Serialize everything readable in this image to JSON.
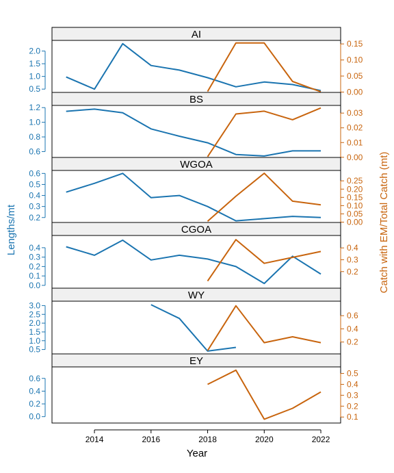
{
  "chart_data": {
    "type": "line",
    "xlabel": "Year",
    "ylabel_left": "Lengths/mt",
    "ylabel_right": "Catch with EM/Total Catch (mt)",
    "xlim": [
      2012.5,
      2022.7
    ],
    "x_ticks": [
      2014,
      2016,
      2018,
      2020,
      2022
    ],
    "colors": {
      "left": "#1a74b0",
      "right": "#c8640d",
      "strip": "#f0f0f0"
    },
    "panels": [
      {
        "title": "AI",
        "left_ylim": [
          0.37,
          2.42
        ],
        "left_ticks": [
          "0.5",
          "1.0",
          "1.5",
          "2.0"
        ],
        "left_tick_values": [
          0.5,
          1.0,
          1.5,
          2.0
        ],
        "right_ylim": [
          -0.001,
          0.161
        ],
        "right_ticks": [
          "0.00",
          "0.05",
          "0.10",
          "0.15"
        ],
        "right_tick_values": [
          0.0,
          0.05,
          0.1,
          0.15
        ],
        "lengths": {
          "x": [
            2013,
            2014,
            2015,
            2016,
            2017,
            2018,
            2019,
            2020,
            2021,
            2022
          ],
          "y": [
            0.98,
            0.5,
            2.29,
            1.43,
            1.25,
            0.95,
            0.59,
            0.78,
            0.68,
            0.44
          ]
        },
        "catch": {
          "x": [
            2018,
            2019,
            2020,
            2021,
            2022
          ],
          "y": [
            0.002,
            0.153,
            0.153,
            0.033,
            0.001
          ]
        }
      },
      {
        "title": "BS",
        "left_ylim": [
          0.52,
          1.23
        ],
        "left_ticks": [
          "0.6",
          "0.8",
          "1.0",
          "1.2"
        ],
        "left_tick_values": [
          0.6,
          0.8,
          1.0,
          1.2
        ],
        "right_ylim": [
          -0.0001,
          0.0352
        ],
        "right_ticks": [
          "0.00",
          "0.01",
          "0.02",
          "0.03"
        ],
        "right_tick_values": [
          0.0,
          0.01,
          0.02,
          0.03
        ],
        "lengths": {
          "x": [
            2013,
            2014,
            2015,
            2016,
            2017,
            2018,
            2019,
            2020,
            2021,
            2022
          ],
          "y": [
            1.15,
            1.18,
            1.13,
            0.91,
            0.81,
            0.72,
            0.56,
            0.54,
            0.61,
            0.61
          ]
        },
        "catch": {
          "x": [
            2018,
            2019,
            2020,
            2021,
            2022
          ],
          "y": [
            0.0004,
            0.0294,
            0.0313,
            0.0255,
            0.0335
          ]
        }
      },
      {
        "title": "WGOA",
        "left_ylim": [
          0.155,
          0.627
        ],
        "left_ticks": [
          "0.2",
          "0.3",
          "0.4",
          "0.5",
          "0.6"
        ],
        "left_tick_values": [
          0.2,
          0.3,
          0.4,
          0.5,
          0.6
        ],
        "right_ylim": [
          -0.002,
          0.313
        ],
        "right_ticks": [
          "0.00",
          "0.05",
          "0.10",
          "0.15",
          "0.20",
          "0.25"
        ],
        "right_tick_values": [
          0.0,
          0.05,
          0.1,
          0.15,
          0.2,
          0.25
        ],
        "lengths": {
          "x": [
            2013,
            2014,
            2015,
            2016,
            2017,
            2018,
            2019,
            2020,
            2021,
            2022
          ],
          "y": [
            0.43,
            0.51,
            0.6,
            0.38,
            0.4,
            0.3,
            0.17,
            0.19,
            0.21,
            0.2
          ]
        },
        "catch": {
          "x": [
            2018,
            2019,
            2020,
            2021,
            2022
          ],
          "y": [
            0.005,
            0.157,
            0.296,
            0.127,
            0.105
          ]
        }
      },
      {
        "title": "CGOA",
        "left_ylim": [
          -0.03,
          0.53
        ],
        "left_ticks": [
          "0.0",
          "0.1",
          "0.2",
          "0.3",
          "0.4"
        ],
        "left_tick_values": [
          0.0,
          0.1,
          0.2,
          0.3,
          0.4
        ],
        "right_ylim": [
          0.06,
          0.505
        ],
        "right_ticks": [
          "0.2",
          "0.3",
          "0.4"
        ],
        "right_tick_values": [
          0.2,
          0.3,
          0.4
        ],
        "lengths": {
          "x": [
            2013,
            2014,
            2015,
            2016,
            2017,
            2018,
            2019,
            2020,
            2021,
            2022
          ],
          "y": [
            0.41,
            0.32,
            0.48,
            0.27,
            0.32,
            0.28,
            0.2,
            0.02,
            0.31,
            0.12
          ]
        },
        "catch": {
          "x": [
            2018,
            2019,
            2020,
            2021,
            2022
          ],
          "y": [
            0.12,
            0.47,
            0.27,
            0.32,
            0.37
          ]
        }
      },
      {
        "title": "WY",
        "left_ylim": [
          0.25,
          3.25
        ],
        "left_ticks": [
          "0.5",
          "1.0",
          "1.5",
          "2.0",
          "2.5",
          "3.0"
        ],
        "left_tick_values": [
          0.5,
          1.0,
          1.5,
          2.0,
          2.5,
          3.0
        ],
        "right_ylim": [
          0.02,
          0.82
        ],
        "right_ticks": [
          "0.2",
          "0.4",
          "0.6"
        ],
        "right_tick_values": [
          0.2,
          0.4,
          0.6
        ],
        "lengths": {
          "x": [
            2016,
            2017,
            2018,
            2019
          ],
          "y": [
            3.05,
            2.27,
            0.41,
            0.62
          ]
        },
        "catch": {
          "x": [
            2018,
            2019,
            2020,
            2021,
            2022
          ],
          "y": [
            0.07,
            0.75,
            0.19,
            0.28,
            0.19
          ]
        }
      },
      {
        "title": "EY",
        "left_ylim": [
          -0.1,
          0.78
        ],
        "left_ticks": [
          "0.0",
          "0.2",
          "0.4",
          "0.6"
        ],
        "left_tick_values": [
          0.0,
          0.2,
          0.4,
          0.6
        ],
        "right_ylim": [
          0.045,
          0.56
        ],
        "right_ticks": [
          "0.1",
          "0.2",
          "0.3",
          "0.4",
          "0.5"
        ],
        "right_tick_values": [
          0.1,
          0.2,
          0.3,
          0.4,
          0.5
        ],
        "lengths": {
          "x": [],
          "y": []
        },
        "catch": {
          "x": [
            2018,
            2019,
            2020,
            2021,
            2022
          ],
          "y": [
            0.4,
            0.53,
            0.08,
            0.18,
            0.33
          ]
        }
      }
    ]
  }
}
